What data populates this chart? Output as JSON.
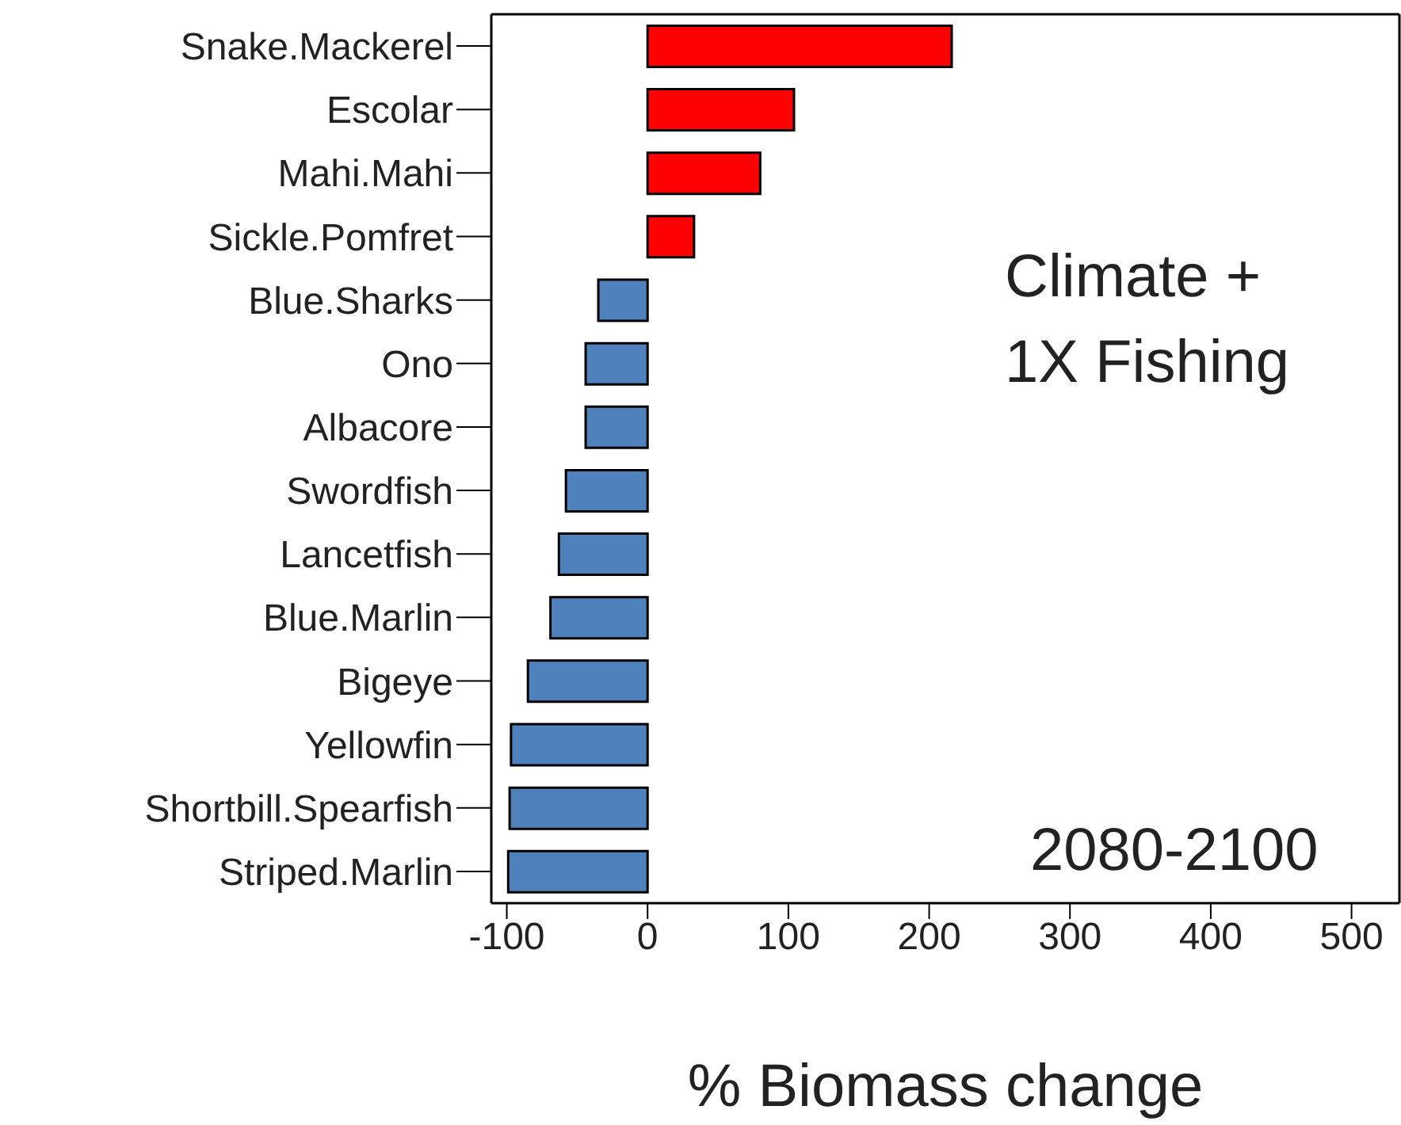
{
  "chart_data": {
    "type": "bar",
    "orientation": "horizontal",
    "xlabel": "% Biomass change",
    "categories": [
      "Snake.Mackerel",
      "Escolar",
      "Mahi.Mahi",
      "Sickle.Pomfret",
      "Blue.Sharks",
      "Ono",
      "Albacore",
      "Swordfish",
      "Lancetfish",
      "Blue.Marlin",
      "Bigeye",
      "Yellowfin",
      "Shortbill.Spearfish",
      "Striped.Marlin"
    ],
    "values": [
      216,
      104,
      80,
      33,
      -35,
      -44,
      -44,
      -58,
      -63,
      -69,
      -85,
      -97,
      -98,
      -99
    ],
    "colors": [
      "#ff0000",
      "#ff0000",
      "#ff0000",
      "#ff0000",
      "#4f81bd",
      "#4f81bd",
      "#4f81bd",
      "#4f81bd",
      "#4f81bd",
      "#4f81bd",
      "#4f81bd",
      "#4f81bd",
      "#4f81bd",
      "#4f81bd"
    ],
    "xlim": [
      -111,
      534
    ],
    "xticks": [
      -100,
      0,
      100,
      200,
      300,
      400,
      500
    ],
    "grid": false,
    "annotations": [
      "Climate +\n1X Fishing",
      "2080-2100"
    ]
  }
}
